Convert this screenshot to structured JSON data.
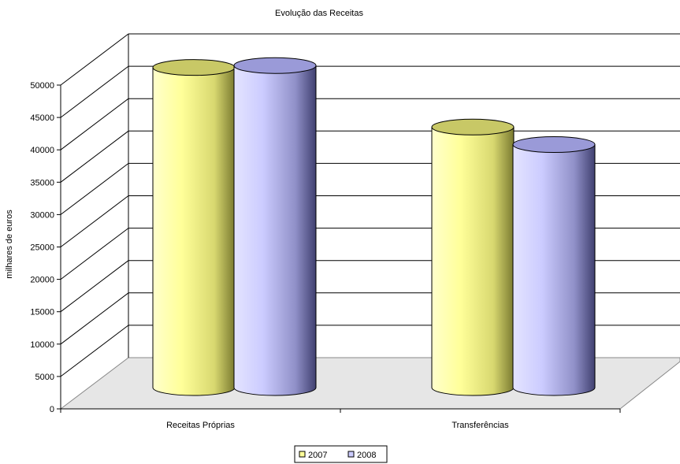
{
  "chart_data": {
    "type": "bar",
    "title": "Evolução das Receitas",
    "xlabel": "",
    "ylabel": "milhares de euros",
    "categories": [
      "Receitas Próprias",
      "Transferências"
    ],
    "series": [
      {
        "name": "2007",
        "values": [
          48700,
          39500
        ],
        "color": "#ffff99"
      },
      {
        "name": "2008",
        "values": [
          49000,
          36800
        ],
        "color": "#ccccff"
      }
    ],
    "ylim": [
      0,
      50000
    ],
    "yticks": [
      0,
      5000,
      10000,
      15000,
      20000,
      25000,
      30000,
      35000,
      40000,
      45000,
      50000
    ],
    "grid": true,
    "legend_position": "bottom",
    "style": "3d-cylinder"
  }
}
